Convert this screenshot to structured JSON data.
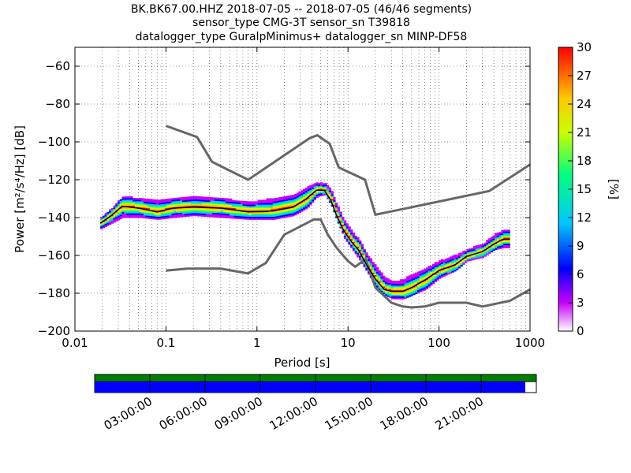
{
  "chart_data": {
    "type": "heatmap",
    "title_lines": [
      "BK.BK67.00.HHZ   2018-07-05 -- 2018-07-05  (46/46 segments)",
      "sensor_type CMG-3T sensor_sn T39818",
      "datalogger_type GuralpMinimus+ datalogger_sn MINP-DF58"
    ],
    "xlabel": "Period [s]",
    "ylabel": "Power [m²/s⁴/Hz] [dB]",
    "x_scale": "log",
    "xlim": [
      0.01,
      1000
    ],
    "ylim": [
      -200,
      -50
    ],
    "x_ticks": [
      0.01,
      0.1,
      1,
      10,
      100,
      1000
    ],
    "x_tick_labels": [
      "0.01",
      "0.1",
      "1",
      "10",
      "100",
      "1000"
    ],
    "y_ticks": [
      -200,
      -180,
      -160,
      -140,
      -120,
      -100,
      -80,
      -60
    ],
    "y_tick_labels": [
      "−200",
      "−180",
      "−160",
      "−140",
      "−120",
      "−100",
      "−80",
      "−60"
    ],
    "grid": true,
    "colorbar": {
      "label": "[%]",
      "range": [
        0,
        30
      ],
      "ticks": [
        0,
        3,
        6,
        9,
        12,
        15,
        18,
        21,
        24,
        27,
        30
      ],
      "tick_labels": [
        "0",
        "3",
        "6",
        "9",
        "12",
        "15",
        "18",
        "21",
        "24",
        "27",
        "30"
      ],
      "colors": [
        "#ffffff",
        "#c800ff",
        "#0000ff",
        "#00c8ff",
        "#00ff80",
        "#c8ff00",
        "#ffc800",
        "#ff0000"
      ]
    },
    "nlnm_series": {
      "x": [
        0.1,
        0.17,
        0.4,
        0.8,
        1.25,
        2.0,
        3.5,
        4.2,
        5.0,
        6.0,
        7.5,
        10,
        12,
        15.6,
        20,
        30,
        40,
        50,
        70,
        100,
        200,
        300,
        600,
        1000
      ],
      "y": [
        -168,
        -167,
        -167,
        -169.5,
        -164,
        -149,
        -143,
        -141,
        -141,
        -149,
        -156,
        -163,
        -166,
        -162,
        -177,
        -185,
        -187,
        -187.5,
        -187,
        -185,
        -185,
        -187,
        -184,
        -178
      ]
    },
    "nhnm_series": {
      "x": [
        0.1,
        0.22,
        0.32,
        0.8,
        3.8,
        4.6,
        6.3,
        7.9,
        15.4,
        20,
        354.8,
        1000
      ],
      "y": [
        -91.5,
        -97.4,
        -110.5,
        -120,
        -98,
        -96.5,
        -101,
        -113.5,
        -120,
        -138.5,
        -126,
        -112
      ]
    },
    "mode_series": {
      "x": [
        0.019,
        0.025,
        0.033,
        0.05,
        0.08,
        0.12,
        0.2,
        0.4,
        0.8,
        1.5,
        2.5,
        3.5,
        4.5,
        5.5,
        6.5,
        7.5,
        9,
        11,
        13,
        16,
        20,
        25,
        30,
        40,
        50,
        70,
        100,
        150,
        200,
        300,
        400,
        500,
        600
      ],
      "y": [
        -143,
        -139,
        -134,
        -135,
        -137,
        -135,
        -134.5,
        -135,
        -137,
        -136.5,
        -134.5,
        -130,
        -125.5,
        -125.5,
        -131,
        -139,
        -147,
        -153,
        -157,
        -165,
        -172.5,
        -178,
        -179,
        -179,
        -177,
        -173,
        -168,
        -165,
        -160.5,
        -158,
        -154,
        -151.5,
        -151.5
      ]
    },
    "density_bands": [
      {
        "x": [
          0.019,
          0.025,
          0.033,
          0.05,
          0.08,
          0.12,
          0.2,
          0.4,
          0.8,
          1.5,
          2.5,
          3.5,
          4.5,
          5.5,
          6.5,
          7.5,
          9,
          11,
          13,
          16,
          20,
          25,
          30,
          40,
          50,
          70,
          100,
          150,
          200,
          300,
          400,
          500,
          600
        ],
        "y_low": [
          -146,
          -143,
          -140,
          -140,
          -141,
          -140,
          -139,
          -140,
          -141,
          -141,
          -139,
          -135,
          -129,
          -128,
          -134,
          -142,
          -151,
          -157,
          -162,
          -169,
          -177,
          -181,
          -183,
          -183,
          -181,
          -178,
          -172,
          -168,
          -163,
          -161,
          -157,
          -156,
          -156
        ],
        "y_high": [
          -140,
          -135,
          -129,
          -130,
          -131,
          -130,
          -129,
          -130,
          -132,
          -130,
          -128,
          -124,
          -122,
          -122,
          -126,
          -134,
          -142,
          -148,
          -152,
          -160,
          -166,
          -172,
          -174,
          -173,
          -170,
          -167,
          -163,
          -160,
          -157,
          -154,
          -149,
          -147,
          -147
        ]
      }
    ],
    "availability_timeline": {
      "tick_labels": [
        "03:00:00",
        "06:00:00",
        "09:00:00",
        "12:00:00",
        "15:00:00",
        "18:00:00",
        "21:00:00"
      ],
      "data_fraction": 0.975
    }
  }
}
